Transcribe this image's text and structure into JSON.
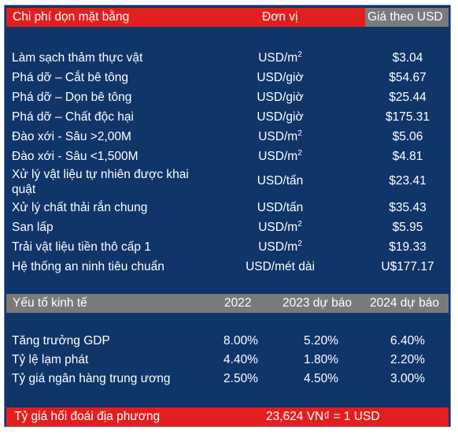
{
  "cost_table": {
    "header": {
      "item": "Chi phí dọn mặt bằng",
      "unit": "Đơn vị",
      "price": "Giá theo USD"
    },
    "rows": [
      {
        "item": "Làm sạch thảm thực vật",
        "unit": "USD/m",
        "unit_sup": "2",
        "price": "$3.04"
      },
      {
        "item": "Phá dỡ – Cắt bê tông",
        "unit": "USD/giờ",
        "unit_sup": "",
        "price": "$54.67"
      },
      {
        "item": "Phá dỡ – Dọn bê tông",
        "unit": "USD/giờ",
        "unit_sup": "",
        "price": "$25.44"
      },
      {
        "item": "Phá dỡ – Chất độc hại",
        "unit": "USD/giờ",
        "unit_sup": "",
        "price": "$175.31"
      },
      {
        "item": "Đào xới - Sâu >2,00M",
        "unit": "USD/m",
        "unit_sup": "2",
        "price": "$5.06"
      },
      {
        "item": "Đào xới - Sâu <1,500M",
        "unit": "USD/m",
        "unit_sup": "2",
        "price": "$4.81"
      },
      {
        "item": "Xử lý vật liệu tự nhiên được khai quật",
        "unit": "USD/tấn",
        "unit_sup": "",
        "price": "$23.41"
      },
      {
        "item": "Xử lý chất thải rắn chung",
        "unit": "USD/tấn",
        "unit_sup": "",
        "price": "$35.43"
      },
      {
        "item": "San lấp",
        "unit": "USD/m",
        "unit_sup": "2",
        "price": "$5.95"
      },
      {
        "item": "Trải vật liệu tiền thô cấp 1",
        "unit": "USD/m",
        "unit_sup": "2",
        "price": "$19.33"
      },
      {
        "item": "Hệ thống an ninh tiêu chuẩn",
        "unit": "USD/mét dài",
        "unit_sup": "",
        "price": "U$177.17"
      }
    ]
  },
  "economic_table": {
    "header": {
      "item": "Yếu tố kinh tế",
      "y1": "2022",
      "y2": "2023 dự báo",
      "y3": "2024 dự báo"
    },
    "rows": [
      {
        "item": "Tăng trưởng GDP",
        "y1": "8.00%",
        "y2": "5.20%",
        "y3": "6.40%"
      },
      {
        "item": "Tỷ lệ lạm phát",
        "y1": "4.40%",
        "y2": "1.80%",
        "y3": "2.20%"
      },
      {
        "item": "Tỷ giá ngân hàng trung ương",
        "y1": "2.50%",
        "y2": "4.50%",
        "y3": "3.00%"
      }
    ]
  },
  "footer": {
    "label": "Tỷ giá hối đoái địa phương",
    "value": "23,624 VN₫ = 1 USD"
  },
  "colors": {
    "navy": "#0f3569",
    "red": "#e21f1f",
    "gray": "#7a7a7a"
  }
}
